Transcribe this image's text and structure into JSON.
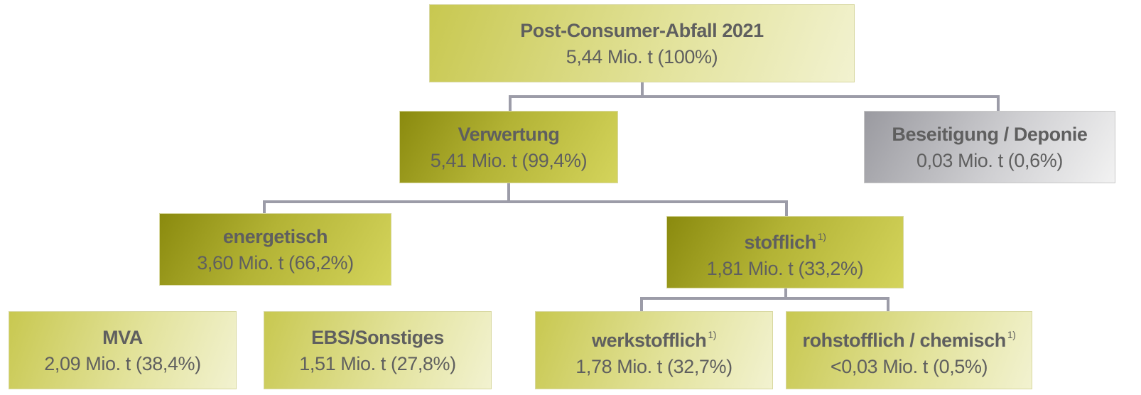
{
  "nodes": [
    {
      "label": "Post-Consumer-Abfall 2021",
      "value": "5,44 Mio. t (100%)"
    },
    {
      "label": "Verwertung",
      "value": "5,41 Mio. t (99,4%)"
    },
    {
      "label": "Beseitigung / Deponie",
      "value": "0,03 Mio. t (0,6%)"
    },
    {
      "label": "energetisch",
      "value": "3,60 Mio. t (66,2%)"
    },
    {
      "label": "stofflich",
      "value": "1,81 Mio. t (33,2%)",
      "note": "1)"
    },
    {
      "label": "MVA",
      "value": "2,09 Mio. t (38,4%)"
    },
    {
      "label": "EBS/Sonstiges",
      "value": "1,51 Mio. t (27,8%)"
    },
    {
      "label": "werkstofflich",
      "value": "1,78 Mio. t (32,7%)",
      "note": "1)"
    },
    {
      "label": "rohstofflich / chemisch",
      "value": "<0,03 Mio. t (0,5%)",
      "note": "1)"
    }
  ]
}
